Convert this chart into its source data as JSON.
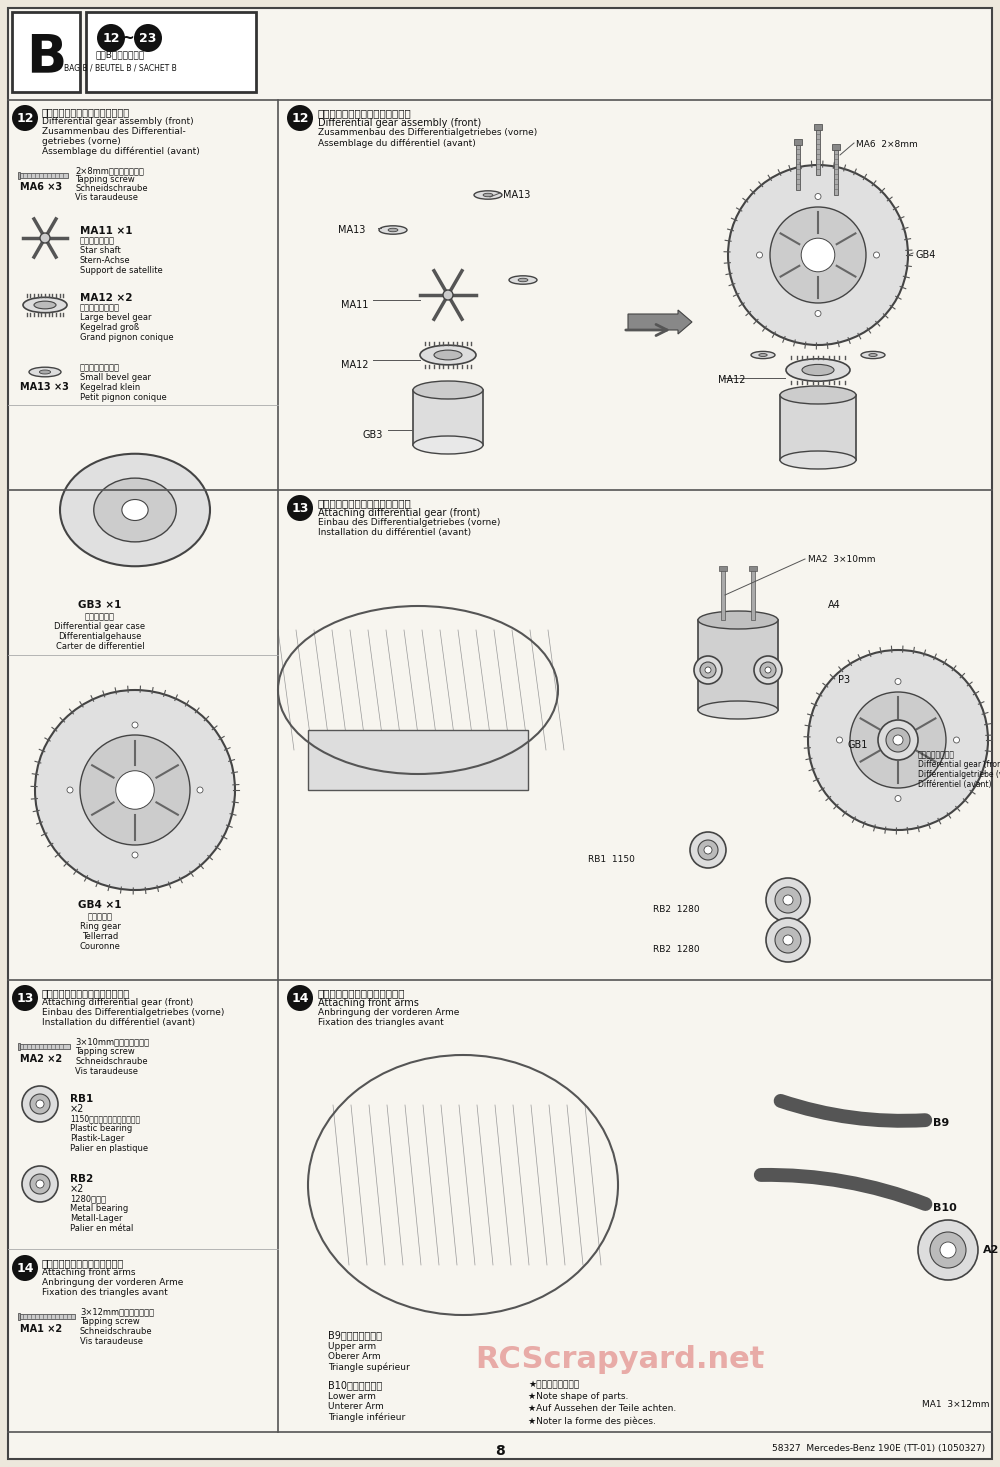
{
  "page_number": "8",
  "footer_right": "58327  Mercedes-Benz 190E (TT-01) (1050327)",
  "watermark": "RCScrapyard.net",
  "bg_color": "#f0ece0",
  "panel_color": "#ffffff",
  "text_color": "#111111",
  "step_circle_color": "#111111",
  "step_text_color": "#ffffff",
  "section_B": {
    "label": "B",
    "step_range": "12~23",
    "bag_jp": "袋詰Bを使用します",
    "bag_en": "BAG B / BEUTEL B / SACHET B"
  },
  "step12_left": {
    "num": "12",
    "title_jp": "《フロントデフギヤの組み立て》",
    "title_en": "Differential gear assembly (front)",
    "title_de": "Zusammenbau des Differential-",
    "title_de2": "getriebes (vorne)",
    "title_fr": "Assemblage du différentiel (avant)",
    "MA6": {
      "qty": "×3",
      "screw": "2×8mmタッピングビス",
      "en": "Tapping screw",
      "de": "Schneidschraube",
      "fr": "Vis taraudeuse"
    },
    "MA11": {
      "qty": "×1",
      "jp": "ベベルシャフト",
      "en": "Star shaft",
      "de": "Stern-Achse",
      "fr": "Support de satellite"
    },
    "MA12": {
      "qty": "×2",
      "jp": "ベベルギヤ（大）",
      "en": "Large bevel gear",
      "de": "Kegelrad groß",
      "fr": "Grand pignon conique"
    },
    "MA13": {
      "qty": "×3",
      "jp": "ベベルギヤ（小）",
      "en": "Small bevel gear",
      "de": "Kegelrad klein",
      "fr": "Petit pignon conique"
    },
    "GB3": {
      "qty": "×1",
      "jp": "デフキャリア",
      "en": "Differential gear case",
      "de": "Differentialgehause",
      "fr": "Carter de differentiel"
    },
    "GB4": {
      "qty": "×1",
      "jp": "リングギヤ",
      "en": "Ring gear",
      "de": "Tellerrad",
      "fr": "Couronne"
    }
  },
  "step12_right": {
    "num": "12",
    "title_jp": "《フロントデフギヤの組み立て》",
    "title_en": "Differential gear assembly (front)",
    "title_de": "Zusammenbau des Differentialgetriebes (vorne)",
    "title_fr": "Assemblage du différentiel (avant)"
  },
  "step13_left": {
    "num": "13",
    "title_jp": "《フロントデフギヤの取り付け》",
    "title_en": "Attaching differential gear (front)",
    "title_de": "Einbau des Differentialgetriebes (vorne)",
    "title_fr": "Installation du différentiel (avant)",
    "MA2": {
      "qty": "×2",
      "screw": "3×10mmタッピングビス",
      "en": "Tapping screw",
      "de": "Schneidschraube",
      "fr": "Vis taraudeuse"
    },
    "RB1": {
      "qty": "×2",
      "jp": "1150プラスチックベアリング",
      "en": "Plastic bearing",
      "de": "Plastik-Lager",
      "fr": "Palier en plastique"
    },
    "RB2": {
      "qty": "×2",
      "jp": "1280メタル",
      "en": "Metal bearing",
      "de": "Metall-Lager",
      "fr": "Palier en métal"
    }
  },
  "step13_right": {
    "num": "13",
    "title_jp": "《フロントデフギヤの取り付け》",
    "title_en": "Attaching differential gear (front)",
    "title_de": "Einbau des Differentialgetriebes (vorne)",
    "title_fr": "Installation du différentiel (avant)"
  },
  "step14_left": {
    "num": "14",
    "title_jp": "《フロントアームの取り付け》",
    "title_en": "Attaching front arms",
    "title_de": "Anbringung der vorderen Arme",
    "title_fr": "Fixation des triangles avant",
    "MA1": {
      "qty": "×2",
      "screw": "3×12mmタッピングビス",
      "en": "Tapping screw",
      "de": "Schneidschraube",
      "fr": "Vis taraudeuse"
    }
  },
  "step14_right": {
    "num": "14",
    "title_jp": "《フロントアームの取り付け》",
    "title_en": "Attaching front arms",
    "title_de": "Anbringung der vorderen Arme",
    "title_fr": "Fixation des triangles avant",
    "b9_jp": "B9アッパーアーム",
    "b9_en": "Upper arm",
    "b9_de": "Oberer Arm",
    "b9_fr": "Triangle supérieur",
    "b10_jp": "B10ロアーアーム",
    "b10_en": "Lower arm",
    "b10_de": "Unterer Arm",
    "b10_fr": "Triangle inférieur",
    "note_jp": "★部品の形に注意。",
    "note_en": "★Note shape of parts.",
    "note_de": "★Auf Aussehen der Teile achten.",
    "note_fr": "★Noter la forme des pièces."
  }
}
